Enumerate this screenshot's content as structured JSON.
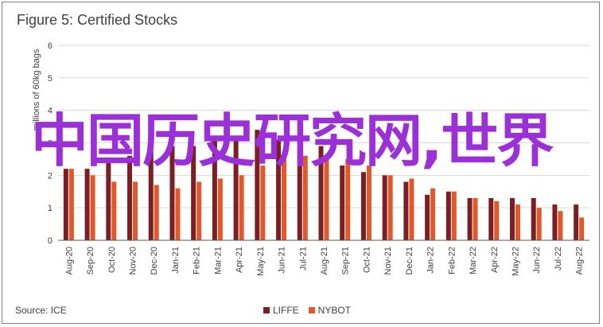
{
  "title": "Figure 5: Certified Stocks",
  "source": "Source: ICE",
  "overlay_text": "中国历史研究网,世界",
  "colors": {
    "LIFFE": "#7b1f23",
    "NYBOT": "#e0592a",
    "grid": "#d9d9d9",
    "axis": "#595959",
    "overlay": "#9b30d9"
  },
  "chart_data": {
    "type": "bar",
    "title": "Figure 5: Certified Stocks",
    "ylabel": "millions of 60kg bags",
    "ylim": [
      0,
      6
    ],
    "yticks": [
      0,
      1,
      2,
      3,
      4,
      5,
      6
    ],
    "grid": true,
    "legend_position": "bottom",
    "categories": [
      "Aug-20",
      "Sep-20",
      "Oct-20",
      "Nov-20",
      "Dec-20",
      "Jan-21",
      "Feb-21",
      "Mar-21",
      "Apr-21",
      "May-21",
      "Jun-21",
      "Jul-21",
      "Aug-21",
      "Sep-21",
      "Oct-21",
      "Nov-21",
      "Dec-21",
      "Jan-22",
      "Feb-22",
      "Mar-22",
      "Apr-22",
      "May-22",
      "Jun-22",
      "Jul-22",
      "Aug-22"
    ],
    "series": [
      {
        "name": "LIFFE",
        "values": [
          2.2,
          2.2,
          2.4,
          2.6,
          2.8,
          2.9,
          2.9,
          3.1,
          3.1,
          3.4,
          3.1,
          2.8,
          2.9,
          2.3,
          2.1,
          2.0,
          1.8,
          1.4,
          1.5,
          1.3,
          1.3,
          1.3,
          1.3,
          1.1,
          1.1
        ]
      },
      {
        "name": "NYBOT",
        "values": [
          2.2,
          2.0,
          1.8,
          1.8,
          1.7,
          1.6,
          1.8,
          1.9,
          2.0,
          2.3,
          2.6,
          2.6,
          2.6,
          2.5,
          2.3,
          2.0,
          1.9,
          1.6,
          1.5,
          1.3,
          1.2,
          1.1,
          1.0,
          0.9,
          0.7
        ]
      }
    ]
  }
}
